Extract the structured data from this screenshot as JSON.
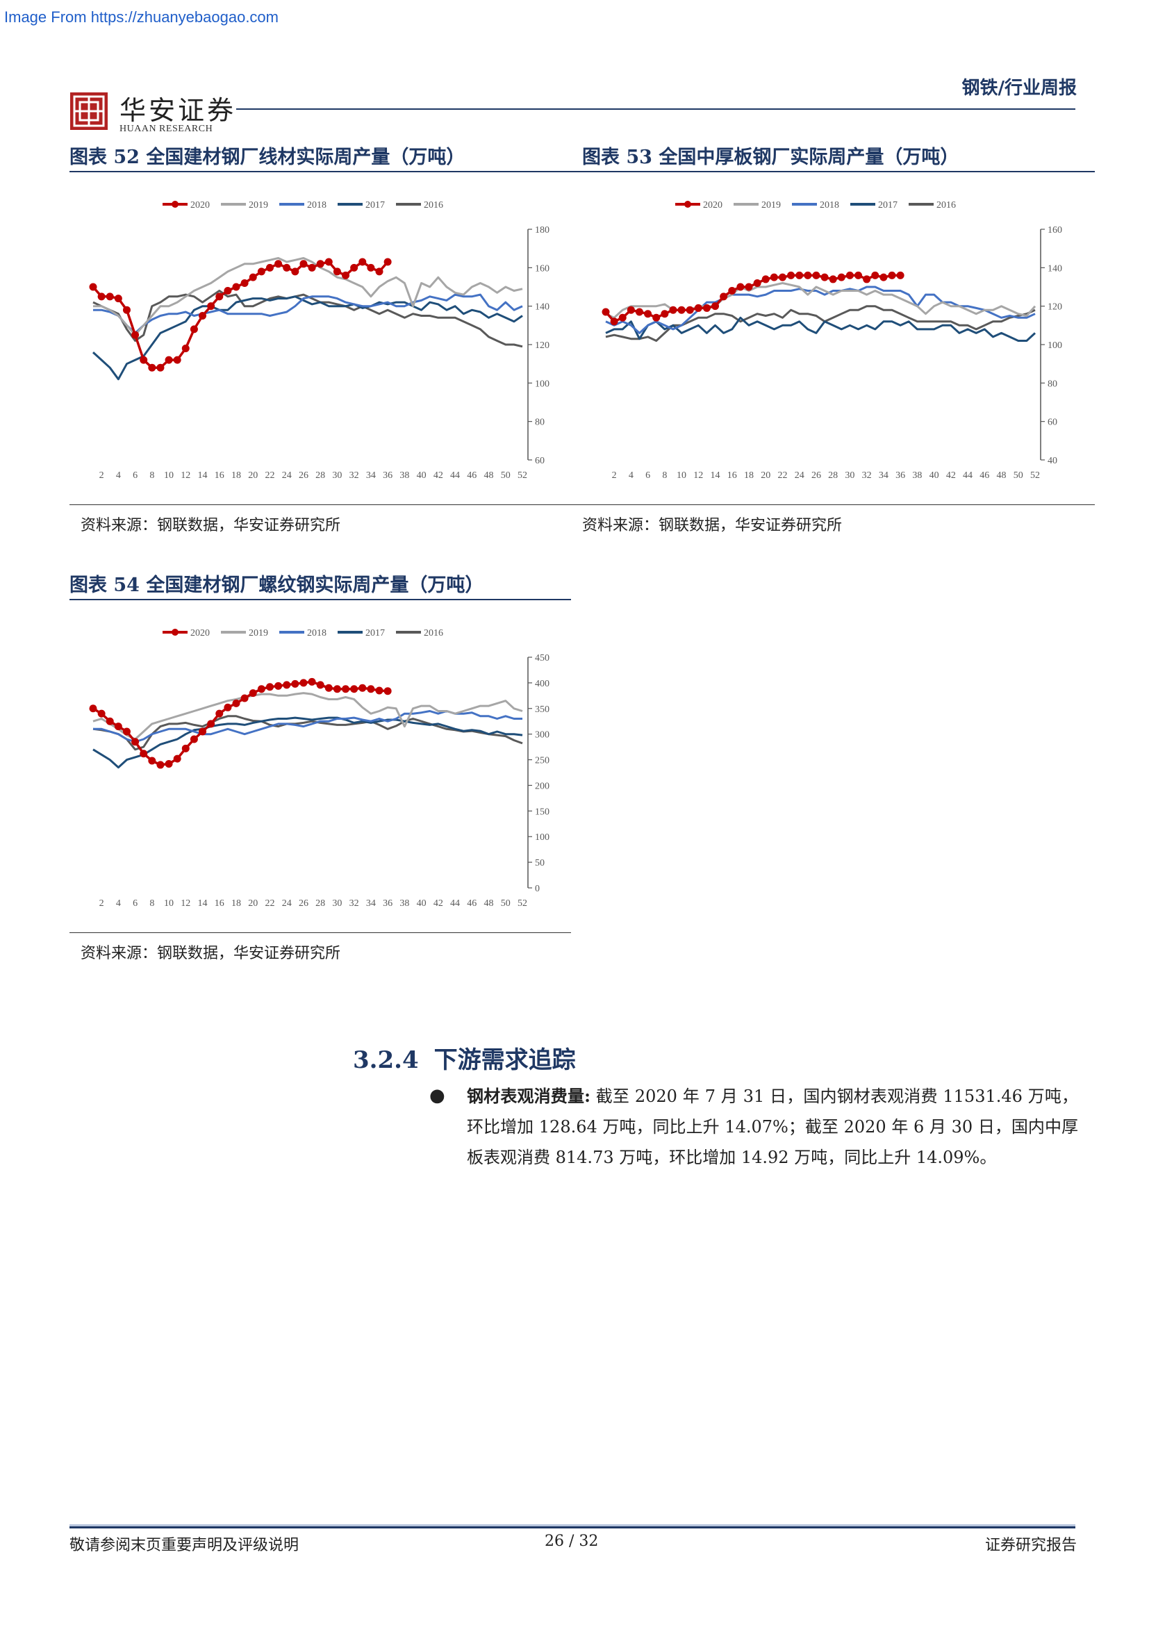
{
  "watermark": "Image From https://zhuanyebaogao.com",
  "header": {
    "brand_cn": "华安证券",
    "brand_en": "HUAAN RESEARCH",
    "doc_type": "钢铁/行业周报"
  },
  "panels": {
    "p52": {
      "title": "图表 52  全国建材钢厂线材实际周产量（万吨）",
      "source": "资料来源：钢联数据，华安证券研究所"
    },
    "p53": {
      "title": "图表 53  全国中厚板钢厂实际周产量（万吨）",
      "source": "资料来源：钢联数据，华安证券研究所"
    },
    "p54": {
      "title": "图表 54  全国建材钢厂螺纹钢实际周产量（万吨）",
      "source": "资料来源：钢联数据，华安证券研究所"
    }
  },
  "colors": {
    "2020": "#c00000",
    "2019": "#a6a6a6",
    "2018": "#4472c4",
    "2017": "#1f4e79",
    "2016": "#595959"
  },
  "chart_data": [
    {
      "id": "p52",
      "type": "line",
      "xlabel": "",
      "ylabel": "",
      "x_ticks": [
        2,
        4,
        6,
        8,
        10,
        12,
        14,
        16,
        18,
        20,
        22,
        24,
        26,
        28,
        30,
        32,
        34,
        36,
        38,
        40,
        42,
        44,
        46,
        48,
        50,
        52
      ],
      "ylim": [
        60,
        180
      ],
      "y_ticks": [
        60,
        80,
        100,
        120,
        140,
        160,
        180
      ],
      "y_axis_position": "right",
      "legend": "top",
      "series": [
        {
          "name": "2020",
          "markers": true,
          "values": [
            150,
            145,
            145,
            144,
            138,
            125,
            112,
            108,
            108,
            112,
            112,
            118,
            128,
            135,
            140,
            145,
            148,
            150,
            152,
            155,
            158,
            160,
            162,
            160,
            158,
            162,
            160,
            162,
            163,
            158,
            156,
            160,
            163,
            160,
            158,
            163
          ]
        },
        {
          "name": "2019",
          "values": [
            140,
            140,
            138,
            135,
            130,
            125,
            130,
            135,
            140,
            140,
            142,
            145,
            148,
            150,
            152,
            155,
            158,
            160,
            162,
            162,
            163,
            164,
            165,
            163,
            164,
            165,
            163,
            160,
            158,
            155,
            154,
            152,
            150,
            145,
            150,
            153,
            155,
            152,
            140,
            152,
            150,
            155,
            150,
            147,
            146,
            150,
            152,
            150,
            147,
            150,
            148,
            149
          ]
        },
        {
          "name": "2018",
          "values": [
            138,
            138,
            137,
            135,
            130,
            126,
            130,
            133,
            135,
            136,
            136,
            137,
            135,
            136,
            137,
            138,
            136,
            136,
            136,
            136,
            136,
            135,
            136,
            137,
            140,
            144,
            145,
            145,
            145,
            144,
            142,
            141,
            140,
            140,
            141,
            142,
            140,
            140,
            142,
            143,
            145,
            144,
            143,
            146,
            145,
            145,
            146,
            140,
            138,
            142,
            138,
            140
          ]
        },
        {
          "name": "2017",
          "values": [
            116,
            112,
            108,
            102,
            110,
            112,
            114,
            120,
            126,
            128,
            130,
            132,
            138,
            140,
            140,
            138,
            138,
            142,
            143,
            144,
            144,
            143,
            144,
            144,
            145,
            143,
            141,
            142,
            140,
            140,
            140,
            141,
            139,
            140,
            142,
            141,
            142,
            142,
            140,
            138,
            142,
            141,
            138,
            140,
            136,
            138,
            137,
            134,
            136,
            134,
            132,
            135
          ]
        },
        {
          "name": "2016",
          "values": [
            142,
            140,
            138,
            136,
            128,
            122,
            125,
            140,
            142,
            145,
            145,
            146,
            145,
            142,
            145,
            148,
            145,
            146,
            140,
            140,
            142,
            144,
            145,
            144,
            145,
            146,
            144,
            142,
            142,
            141,
            140,
            138,
            140,
            138,
            136,
            138,
            136,
            134,
            136,
            135,
            135,
            134,
            134,
            134,
            132,
            130,
            128,
            124,
            122,
            120,
            120,
            119
          ]
        }
      ]
    },
    {
      "id": "p53",
      "type": "line",
      "xlabel": "",
      "ylabel": "",
      "x_ticks": [
        2,
        4,
        6,
        8,
        10,
        12,
        14,
        16,
        18,
        20,
        22,
        24,
        26,
        28,
        30,
        32,
        34,
        36,
        38,
        40,
        42,
        44,
        46,
        48,
        50,
        52
      ],
      "ylim": [
        40,
        160
      ],
      "y_ticks": [
        40,
        60,
        80,
        100,
        120,
        140,
        160
      ],
      "y_axis_position": "right",
      "legend": "top",
      "series": [
        {
          "name": "2020",
          "markers": true,
          "values": [
            117,
            112,
            114,
            118,
            117,
            116,
            114,
            116,
            118,
            118,
            118,
            119,
            119,
            120,
            125,
            128,
            130,
            130,
            132,
            134,
            135,
            135,
            136,
            136,
            136,
            136,
            135,
            134,
            135,
            136,
            136,
            134,
            136,
            135,
            136,
            136
          ]
        },
        {
          "name": "2019",
          "values": [
            116,
            114,
            118,
            120,
            120,
            120,
            120,
            121,
            118,
            118,
            118,
            120,
            120,
            120,
            124,
            126,
            130,
            128,
            130,
            130,
            131,
            132,
            131,
            130,
            126,
            130,
            128,
            126,
            128,
            128,
            128,
            126,
            128,
            126,
            126,
            124,
            122,
            120,
            116,
            120,
            122,
            120,
            120,
            118,
            116,
            118,
            118,
            120,
            118,
            116,
            115,
            120
          ]
        },
        {
          "name": "2018",
          "values": [
            112,
            110,
            112,
            110,
            106,
            110,
            112,
            110,
            108,
            110,
            114,
            118,
            122,
            122,
            124,
            126,
            126,
            126,
            125,
            126,
            128,
            128,
            128,
            129,
            128,
            128,
            126,
            128,
            128,
            129,
            128,
            130,
            130,
            128,
            128,
            128,
            126,
            120,
            126,
            126,
            122,
            122,
            120,
            120,
            119,
            118,
            116,
            114,
            115,
            114,
            114,
            116
          ]
        },
        {
          "name": "2017",
          "values": [
            106,
            108,
            108,
            112,
            103,
            110,
            112,
            108,
            110,
            106,
            108,
            110,
            106,
            110,
            106,
            108,
            114,
            110,
            112,
            110,
            108,
            110,
            110,
            112,
            108,
            106,
            112,
            110,
            108,
            110,
            108,
            110,
            108,
            112,
            112,
            110,
            112,
            108,
            108,
            108,
            110,
            110,
            106,
            108,
            106,
            108,
            104,
            106,
            104,
            102,
            102,
            106
          ]
        },
        {
          "name": "2016",
          "values": [
            104,
            105,
            104,
            103,
            103,
            104,
            102,
            106,
            110,
            110,
            112,
            114,
            114,
            116,
            116,
            115,
            112,
            114,
            116,
            115,
            116,
            114,
            118,
            116,
            116,
            115,
            112,
            114,
            116,
            118,
            118,
            120,
            120,
            118,
            118,
            116,
            114,
            112,
            112,
            112,
            112,
            112,
            110,
            110,
            108,
            110,
            112,
            112,
            114,
            115,
            116,
            118
          ]
        }
      ]
    },
    {
      "id": "p54",
      "type": "line",
      "xlabel": "",
      "ylabel": "",
      "x_ticks": [
        2,
        4,
        6,
        8,
        10,
        12,
        14,
        16,
        18,
        20,
        22,
        24,
        26,
        28,
        30,
        32,
        34,
        36,
        38,
        40,
        42,
        44,
        46,
        48,
        50,
        52
      ],
      "ylim": [
        0,
        450
      ],
      "y_ticks": [
        0,
        50,
        100,
        150,
        200,
        250,
        300,
        350,
        400,
        450
      ],
      "y_axis_position": "right",
      "legend": "top",
      "series": [
        {
          "name": "2020",
          "markers": true,
          "values": [
            350,
            340,
            325,
            315,
            305,
            285,
            262,
            248,
            240,
            242,
            252,
            272,
            290,
            305,
            320,
            340,
            352,
            360,
            370,
            380,
            388,
            392,
            394,
            396,
            398,
            400,
            402,
            396,
            390,
            388,
            388,
            388,
            390,
            388,
            385,
            384
          ]
        },
        {
          "name": "2019",
          "values": [
            325,
            330,
            320,
            310,
            298,
            290,
            305,
            320,
            325,
            330,
            335,
            340,
            345,
            350,
            355,
            360,
            365,
            368,
            372,
            375,
            378,
            378,
            375,
            375,
            378,
            380,
            378,
            372,
            368,
            368,
            372,
            368,
            352,
            340,
            345,
            352,
            350,
            315,
            350,
            355,
            355,
            345,
            345,
            340,
            345,
            350,
            355,
            355,
            360,
            365,
            350,
            345
          ]
        },
        {
          "name": "2018",
          "values": [
            310,
            310,
            305,
            300,
            290,
            285,
            290,
            300,
            305,
            310,
            310,
            310,
            305,
            300,
            300,
            305,
            310,
            305,
            300,
            305,
            310,
            315,
            320,
            320,
            318,
            315,
            320,
            325,
            325,
            330,
            330,
            332,
            328,
            325,
            330,
            325,
            330,
            340,
            340,
            342,
            345,
            340,
            345,
            340,
            340,
            342,
            335,
            335,
            330,
            335,
            330,
            330
          ]
        },
        {
          "name": "2017",
          "values": [
            270,
            260,
            250,
            235,
            250,
            255,
            260,
            270,
            280,
            285,
            290,
            300,
            308,
            310,
            315,
            318,
            320,
            320,
            318,
            322,
            325,
            328,
            330,
            330,
            332,
            330,
            328,
            330,
            332,
            332,
            328,
            322,
            325,
            322,
            325,
            328,
            328,
            325,
            322,
            320,
            318,
            320,
            315,
            310,
            306,
            308,
            306,
            300,
            305,
            300,
            300,
            298
          ]
        },
        {
          "name": "2016",
          "values": [
            310,
            308,
            305,
            300,
            290,
            270,
            275,
            300,
            315,
            320,
            320,
            322,
            318,
            315,
            322,
            330,
            335,
            335,
            330,
            326,
            325,
            318,
            315,
            320,
            320,
            322,
            325,
            322,
            320,
            318,
            318,
            320,
            322,
            325,
            318,
            310,
            316,
            325,
            330,
            325,
            320,
            315,
            310,
            308,
            305,
            306,
            303,
            300,
            298,
            296,
            288,
            282
          ]
        }
      ]
    }
  ],
  "section": {
    "number": "3.2.4",
    "title": "下游需求追踪"
  },
  "bullet": {
    "label": "钢材表观消费量:",
    "text": " 截至 2020 年 7 月 31 日，国内钢材表观消费 11531.46 万吨，环比增加 128.64 万吨，同比上升 14.07%；截至 2020 年 6 月 30 日，国内中厚板表观消费 814.73 万吨，环比增加 14.92 万吨，同比上升 14.09%。"
  },
  "footer": {
    "disclaimer": "敬请参阅末页重要声明及评级说明",
    "page": "26 / 32",
    "report_type": "证券研究报告"
  }
}
